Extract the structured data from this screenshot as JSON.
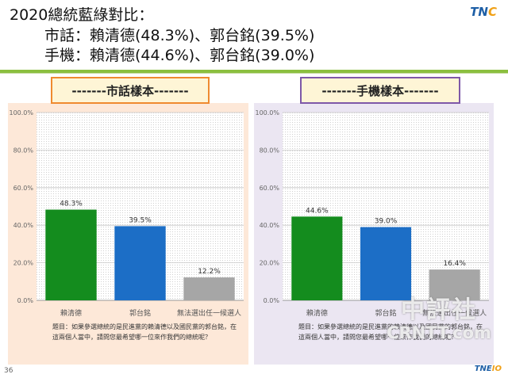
{
  "header": {
    "line1": "2020總統藍綠對比：",
    "line2": "市話：賴清德(48.3%)、郭台銘(39.5%)",
    "line3": "手機：賴清德(44.6%)、郭台銘(39.0%)"
  },
  "brand": {
    "top_logo_main": "TN",
    "top_logo_accent": "C",
    "bottom_logo_main": "TNE",
    "bottom_logo_accent": "IO"
  },
  "watermark": {
    "line1": "中評社",
    "line2": "CRNTT.com"
  },
  "page_number": "36",
  "left_panel": {
    "title": "-------市話樣本-------",
    "question": "題目：如果參選總統的是民進黨的賴清德以及國民黨的郭台銘，在這兩個人當中，請問您最希望哪一位來作我們的總統呢？"
  },
  "right_panel": {
    "title": "-------手機樣本-------",
    "question": "題目：如果參選總統的是民進黨的賴清德以及國民黨的郭台銘，在這兩個人當中，請問您最希望哪一位來作我們的總統呢？"
  },
  "chart_data": [
    {
      "type": "bar",
      "categories": [
        "賴清德",
        "郭台銘",
        "無法選出任一候選人"
      ],
      "values": [
        48.3,
        39.5,
        12.2
      ],
      "value_labels": [
        "48.3%",
        "39.5%",
        "12.2%"
      ],
      "bar_colors": [
        "#148c1e",
        "#1c6ec6",
        "#a6a6a6"
      ],
      "y_ticks": [
        "0.0%",
        "20.0%",
        "40.0%",
        "60.0%",
        "80.0%",
        "100.0%"
      ],
      "ylim": [
        0,
        100
      ],
      "grid": true
    },
    {
      "type": "bar",
      "categories": [
        "賴清德",
        "郭台銘",
        "無法選出任一候選人"
      ],
      "values": [
        44.6,
        39.0,
        16.4
      ],
      "value_labels": [
        "44.6%",
        "39.0%",
        "16.4%"
      ],
      "bar_colors": [
        "#148c1e",
        "#1c6ec6",
        "#a6a6a6"
      ],
      "y_ticks": [
        "0.0%",
        "20.0%",
        "40.0%",
        "60.0%",
        "80.0%",
        "100.0%"
      ],
      "ylim": [
        0,
        100
      ],
      "grid": true
    }
  ]
}
